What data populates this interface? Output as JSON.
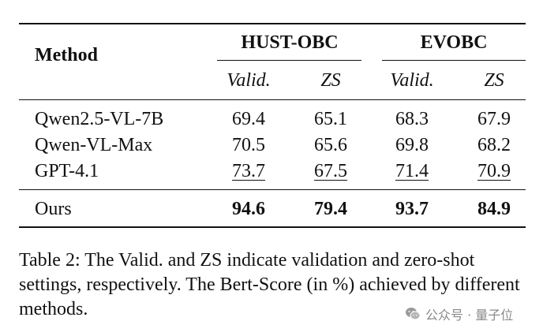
{
  "table": {
    "method_header": "Method",
    "groups": [
      {
        "name": "HUST-OBC",
        "subcols": [
          "Valid.",
          "ZS"
        ]
      },
      {
        "name": "EVOBC",
        "subcols": [
          "Valid.",
          "ZS"
        ]
      }
    ],
    "rows": [
      {
        "method": "Qwen2.5-VL-7B",
        "values": [
          "69.4",
          "65.1",
          "68.3",
          "67.9"
        ]
      },
      {
        "method": "Qwen-VL-Max",
        "values": [
          "70.5",
          "65.6",
          "69.8",
          "68.2"
        ]
      },
      {
        "method": "GPT-4.1",
        "values": [
          "73.7",
          "67.5",
          "71.4",
          "70.9"
        ]
      }
    ],
    "final_row": {
      "method": "Ours",
      "values": [
        "94.6",
        "79.4",
        "93.7",
        "84.9"
      ]
    }
  },
  "caption": "Table 2: The Valid. and ZS indicate validation and zero-shot settings, respectively. The Bert-Score (in %) achieved by different methods.",
  "watermark": {
    "text": "公众号 · 量子位",
    "icon": "wechat-icon"
  }
}
